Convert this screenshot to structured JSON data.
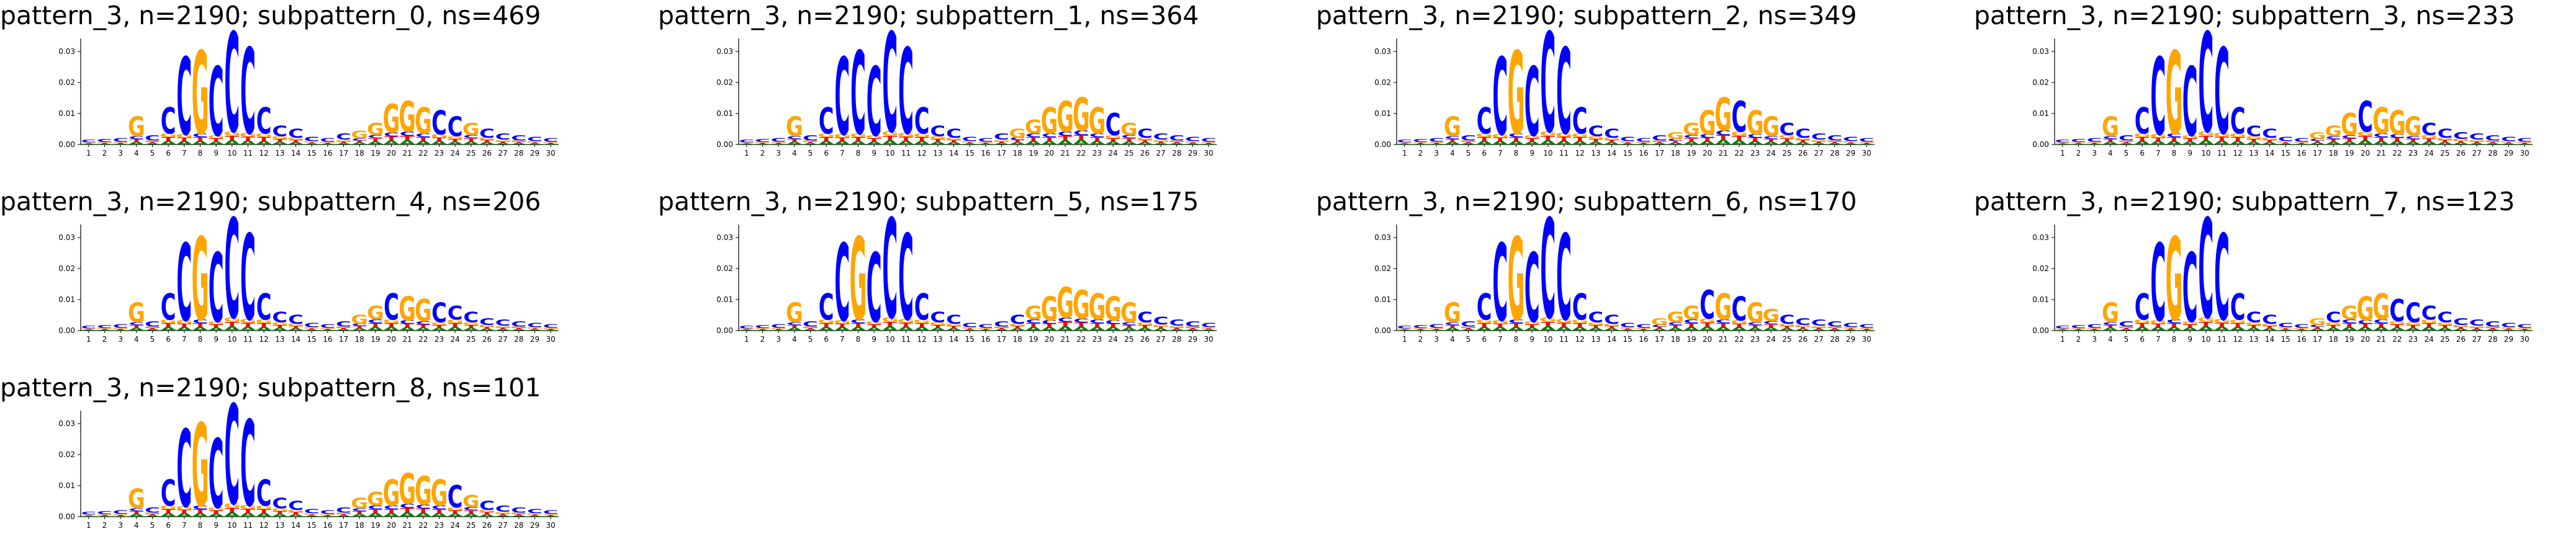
{
  "colors": {
    "A": "#008000",
    "C": "#0000ff",
    "G": "#ffa500",
    "T": "#ff0000",
    "axis": "#000000"
  },
  "chart_data": [
    {
      "type": "sequence_logo",
      "title": "pattern_3, n=2190; subpattern_0, ns=469",
      "ylim": [
        0,
        0.035
      ],
      "yticks": [
        "0.00",
        "0.01",
        "0.02",
        "0.03"
      ],
      "positions": [
        "1",
        "2",
        "3",
        "4",
        "5",
        "6",
        "7",
        "8",
        "9",
        "10",
        "11",
        "12",
        "13",
        "14",
        "15",
        "16",
        "17",
        "18",
        "19",
        "20",
        "21",
        "22",
        "23",
        "24",
        "25",
        "26",
        "27",
        "28",
        "29",
        "30"
      ],
      "top_letters": [
        "C",
        "C",
        "C",
        "G",
        "C",
        "C",
        "C",
        "G",
        "C",
        "C",
        "C",
        "C",
        "C",
        "C",
        "C",
        "C",
        "C",
        "G",
        "G",
        "G",
        "G",
        "G",
        "C",
        "C",
        "G",
        "C",
        "C",
        "C",
        "C",
        "C"
      ],
      "heights": [
        0.0015,
        0.0018,
        0.002,
        0.009,
        0.003,
        0.012,
        0.028,
        0.03,
        0.025,
        0.036,
        0.031,
        0.012,
        0.006,
        0.005,
        0.0025,
        0.002,
        0.0035,
        0.0045,
        0.007,
        0.013,
        0.014,
        0.012,
        0.011,
        0.009,
        0.007,
        0.005,
        0.0035,
        0.003,
        0.0025,
        0.002
      ]
    },
    {
      "type": "sequence_logo",
      "title": "pattern_3, n=2190; subpattern_1, ns=364",
      "ylim": [
        0,
        0.035
      ],
      "yticks": [
        "0.00",
        "0.01",
        "0.02",
        "0.03"
      ],
      "positions": [
        "1",
        "2",
        "3",
        "4",
        "5",
        "6",
        "7",
        "8",
        "9",
        "10",
        "11",
        "12",
        "13",
        "14",
        "15",
        "16",
        "17",
        "18",
        "19",
        "20",
        "21",
        "22",
        "23",
        "24",
        "25",
        "26",
        "27",
        "28",
        "29",
        "30"
      ],
      "top_letters": [
        "C",
        "C",
        "C",
        "G",
        "C",
        "C",
        "C",
        "C",
        "C",
        "C",
        "C",
        "C",
        "C",
        "C",
        "C",
        "C",
        "C",
        "G",
        "G",
        "G",
        "G",
        "G",
        "G",
        "C",
        "G",
        "C",
        "C",
        "C",
        "C",
        "C"
      ],
      "heights": [
        0.0015,
        0.0018,
        0.002,
        0.009,
        0.003,
        0.012,
        0.028,
        0.03,
        0.025,
        0.036,
        0.031,
        0.012,
        0.006,
        0.005,
        0.0025,
        0.002,
        0.0035,
        0.005,
        0.008,
        0.012,
        0.014,
        0.015,
        0.012,
        0.01,
        0.007,
        0.005,
        0.0035,
        0.003,
        0.0025,
        0.002
      ]
    },
    {
      "type": "sequence_logo",
      "title": "pattern_3, n=2190; subpattern_2, ns=349",
      "ylim": [
        0,
        0.035
      ],
      "yticks": [
        "0.00",
        "0.01",
        "0.02",
        "0.03"
      ],
      "positions": [
        "1",
        "2",
        "3",
        "4",
        "5",
        "6",
        "7",
        "8",
        "9",
        "10",
        "11",
        "12",
        "13",
        "14",
        "15",
        "16",
        "17",
        "18",
        "19",
        "20",
        "21",
        "22",
        "23",
        "24",
        "25",
        "26",
        "27",
        "28",
        "29",
        "30"
      ],
      "top_letters": [
        "C",
        "C",
        "C",
        "G",
        "C",
        "C",
        "C",
        "G",
        "C",
        "C",
        "C",
        "C",
        "C",
        "C",
        "C",
        "C",
        "C",
        "G",
        "G",
        "G",
        "G",
        "C",
        "G",
        "G",
        "C",
        "C",
        "C",
        "C",
        "C",
        "C"
      ],
      "heights": [
        0.0015,
        0.0018,
        0.002,
        0.009,
        0.003,
        0.012,
        0.028,
        0.03,
        0.025,
        0.036,
        0.031,
        0.012,
        0.006,
        0.005,
        0.0025,
        0.002,
        0.003,
        0.004,
        0.007,
        0.011,
        0.015,
        0.014,
        0.011,
        0.009,
        0.007,
        0.005,
        0.0035,
        0.003,
        0.0025,
        0.002
      ]
    },
    {
      "type": "sequence_logo",
      "title": "pattern_3, n=2190; subpattern_3, ns=233",
      "ylim": [
        0,
        0.035
      ],
      "yticks": [
        "0.00",
        "0.01",
        "0.02",
        "0.03"
      ],
      "positions": [
        "1",
        "2",
        "3",
        "4",
        "5",
        "6",
        "7",
        "8",
        "9",
        "10",
        "11",
        "12",
        "13",
        "14",
        "15",
        "16",
        "17",
        "18",
        "19",
        "20",
        "21",
        "22",
        "23",
        "24",
        "25",
        "26",
        "27",
        "28",
        "29",
        "30"
      ],
      "top_letters": [
        "C",
        "C",
        "C",
        "G",
        "C",
        "C",
        "C",
        "G",
        "C",
        "C",
        "C",
        "C",
        "C",
        "C",
        "C",
        "C",
        "G",
        "G",
        "G",
        "C",
        "G",
        "G",
        "G",
        "C",
        "C",
        "C",
        "C",
        "C",
        "C",
        "C"
      ],
      "heights": [
        0.0015,
        0.0018,
        0.002,
        0.009,
        0.003,
        0.012,
        0.028,
        0.03,
        0.025,
        0.036,
        0.031,
        0.012,
        0.006,
        0.005,
        0.0025,
        0.002,
        0.004,
        0.006,
        0.01,
        0.014,
        0.012,
        0.011,
        0.009,
        0.007,
        0.005,
        0.004,
        0.0035,
        0.003,
        0.0025,
        0.002
      ]
    },
    {
      "type": "sequence_logo",
      "title": "pattern_3, n=2190; subpattern_4, ns=206",
      "ylim": [
        0,
        0.035
      ],
      "yticks": [
        "0.00",
        "0.01",
        "0.02",
        "0.03"
      ],
      "positions": [
        "1",
        "2",
        "3",
        "4",
        "5",
        "6",
        "7",
        "8",
        "9",
        "10",
        "11",
        "12",
        "13",
        "14",
        "15",
        "16",
        "17",
        "18",
        "19",
        "20",
        "21",
        "22",
        "23",
        "24",
        "25",
        "26",
        "27",
        "28",
        "29",
        "30"
      ],
      "top_letters": [
        "C",
        "C",
        "C",
        "G",
        "C",
        "C",
        "C",
        "G",
        "C",
        "C",
        "C",
        "C",
        "C",
        "C",
        "C",
        "C",
        "C",
        "G",
        "G",
        "C",
        "G",
        "G",
        "C",
        "C",
        "C",
        "C",
        "C",
        "C",
        "C",
        "C"
      ],
      "heights": [
        0.0015,
        0.0018,
        0.002,
        0.009,
        0.003,
        0.012,
        0.028,
        0.03,
        0.025,
        0.036,
        0.031,
        0.012,
        0.006,
        0.005,
        0.0025,
        0.002,
        0.003,
        0.005,
        0.008,
        0.012,
        0.011,
        0.01,
        0.009,
        0.008,
        0.006,
        0.004,
        0.0035,
        0.003,
        0.0025,
        0.002
      ]
    },
    {
      "type": "sequence_logo",
      "title": "pattern_3, n=2190; subpattern_5, ns=175",
      "ylim": [
        0,
        0.035
      ],
      "yticks": [
        "0.00",
        "0.01",
        "0.02",
        "0.03"
      ],
      "positions": [
        "1",
        "2",
        "3",
        "4",
        "5",
        "6",
        "7",
        "8",
        "9",
        "10",
        "11",
        "12",
        "13",
        "14",
        "15",
        "16",
        "17",
        "18",
        "19",
        "20",
        "21",
        "22",
        "23",
        "24",
        "25",
        "26",
        "27",
        "28",
        "29",
        "30"
      ],
      "top_letters": [
        "C",
        "C",
        "C",
        "G",
        "C",
        "C",
        "C",
        "G",
        "C",
        "C",
        "C",
        "C",
        "C",
        "C",
        "C",
        "C",
        "C",
        "C",
        "G",
        "G",
        "G",
        "G",
        "G",
        "G",
        "G",
        "C",
        "C",
        "C",
        "C",
        "C"
      ],
      "heights": [
        0.0015,
        0.0018,
        0.002,
        0.009,
        0.003,
        0.012,
        0.028,
        0.03,
        0.025,
        0.036,
        0.031,
        0.012,
        0.006,
        0.005,
        0.0025,
        0.002,
        0.003,
        0.005,
        0.008,
        0.011,
        0.014,
        0.013,
        0.012,
        0.011,
        0.009,
        0.006,
        0.0045,
        0.0035,
        0.003,
        0.0025
      ]
    },
    {
      "type": "sequence_logo",
      "title": "pattern_3, n=2190; subpattern_6, ns=170",
      "ylim": [
        0,
        0.035
      ],
      "yticks": [
        "0.00",
        "0.01",
        "0.02",
        "0.03"
      ],
      "positions": [
        "1",
        "2",
        "3",
        "4",
        "5",
        "6",
        "7",
        "8",
        "9",
        "10",
        "11",
        "12",
        "13",
        "14",
        "15",
        "16",
        "17",
        "18",
        "19",
        "20",
        "21",
        "22",
        "23",
        "24",
        "25",
        "26",
        "27",
        "28",
        "29",
        "30"
      ],
      "top_letters": [
        "C",
        "C",
        "C",
        "G",
        "C",
        "C",
        "C",
        "G",
        "C",
        "C",
        "C",
        "C",
        "C",
        "C",
        "C",
        "C",
        "G",
        "G",
        "G",
        "C",
        "G",
        "C",
        "G",
        "G",
        "C",
        "C",
        "C",
        "C",
        "C",
        "C"
      ],
      "heights": [
        0.0015,
        0.0018,
        0.002,
        0.009,
        0.003,
        0.012,
        0.028,
        0.03,
        0.025,
        0.036,
        0.031,
        0.012,
        0.006,
        0.005,
        0.0025,
        0.002,
        0.004,
        0.006,
        0.008,
        0.013,
        0.012,
        0.011,
        0.009,
        0.007,
        0.005,
        0.004,
        0.0035,
        0.003,
        0.0025,
        0.002
      ]
    },
    {
      "type": "sequence_logo",
      "title": "pattern_3, n=2190; subpattern_7, ns=123",
      "ylim": [
        0,
        0.035
      ],
      "yticks": [
        "0.00",
        "0.01",
        "0.02",
        "0.03"
      ],
      "positions": [
        "1",
        "2",
        "3",
        "4",
        "5",
        "6",
        "7",
        "8",
        "9",
        "10",
        "11",
        "12",
        "13",
        "14",
        "15",
        "16",
        "17",
        "18",
        "19",
        "20",
        "21",
        "22",
        "23",
        "24",
        "25",
        "26",
        "27",
        "28",
        "29",
        "30"
      ],
      "top_letters": [
        "C",
        "C",
        "C",
        "G",
        "C",
        "C",
        "C",
        "G",
        "C",
        "C",
        "C",
        "C",
        "C",
        "C",
        "C",
        "C",
        "G",
        "C",
        "G",
        "G",
        "G",
        "C",
        "C",
        "C",
        "C",
        "C",
        "C",
        "C",
        "C",
        "C"
      ],
      "heights": [
        0.0015,
        0.0018,
        0.002,
        0.009,
        0.003,
        0.012,
        0.028,
        0.03,
        0.025,
        0.036,
        0.031,
        0.012,
        0.006,
        0.005,
        0.0025,
        0.002,
        0.004,
        0.006,
        0.008,
        0.011,
        0.012,
        0.01,
        0.009,
        0.008,
        0.006,
        0.004,
        0.0035,
        0.003,
        0.0025,
        0.002
      ]
    },
    {
      "type": "sequence_logo",
      "title": "pattern_3, n=2190; subpattern_8, ns=101",
      "ylim": [
        0,
        0.035
      ],
      "yticks": [
        "0.00",
        "0.01",
        "0.02",
        "0.03"
      ],
      "positions": [
        "1",
        "2",
        "3",
        "4",
        "5",
        "6",
        "7",
        "8",
        "9",
        "10",
        "11",
        "12",
        "13",
        "14",
        "15",
        "16",
        "17",
        "18",
        "19",
        "20",
        "21",
        "22",
        "23",
        "24",
        "25",
        "26",
        "27",
        "28",
        "29",
        "30"
      ],
      "top_letters": [
        "C",
        "C",
        "C",
        "G",
        "C",
        "C",
        "C",
        "G",
        "C",
        "C",
        "C",
        "C",
        "C",
        "C",
        "C",
        "C",
        "C",
        "G",
        "G",
        "G",
        "G",
        "G",
        "G",
        "C",
        "G",
        "C",
        "C",
        "C",
        "C",
        "C"
      ],
      "heights": [
        0.0015,
        0.0018,
        0.002,
        0.009,
        0.003,
        0.012,
        0.028,
        0.03,
        0.025,
        0.036,
        0.031,
        0.012,
        0.006,
        0.005,
        0.0025,
        0.002,
        0.003,
        0.006,
        0.008,
        0.012,
        0.014,
        0.013,
        0.012,
        0.01,
        0.007,
        0.005,
        0.0035,
        0.003,
        0.0025,
        0.002
      ]
    }
  ]
}
